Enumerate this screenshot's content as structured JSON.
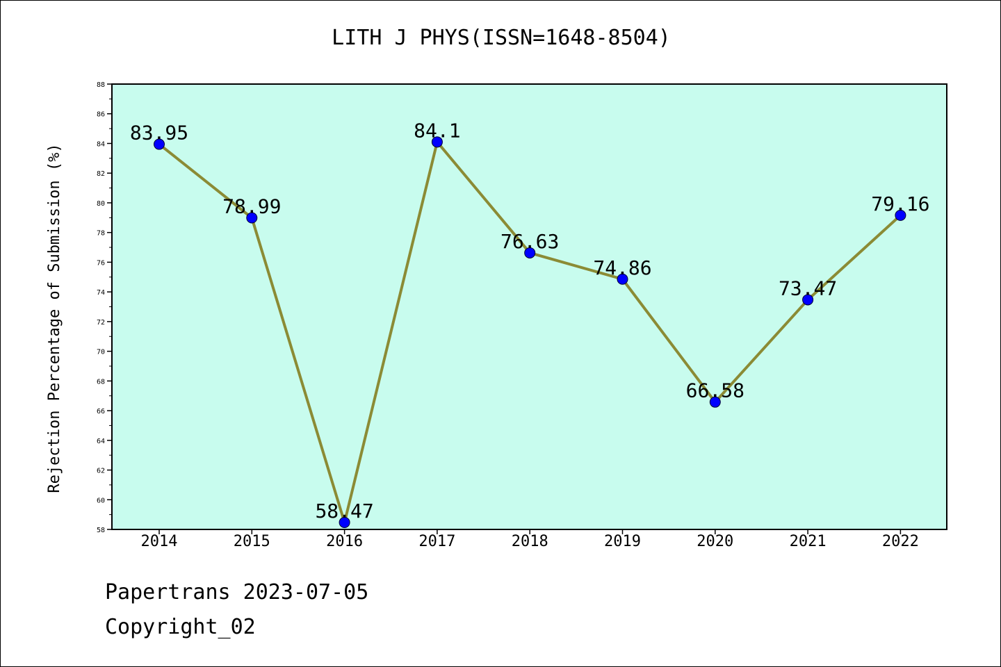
{
  "chart_data": {
    "type": "line",
    "title": "LITH J PHYS(ISSN=1648-8504)",
    "xlabel": "",
    "ylabel": "Rejection Percentage of Submission (%)",
    "categories": [
      "2014",
      "2015",
      "2016",
      "2017",
      "2018",
      "2019",
      "2020",
      "2021",
      "2022"
    ],
    "values": [
      83.95,
      78.99,
      58.47,
      84.1,
      76.63,
      74.86,
      66.58,
      73.47,
      79.16
    ],
    "data_labels": [
      "83.95",
      "78.99",
      "58.47",
      "84.1",
      "76.63",
      "74.86",
      "66.58",
      "73.47",
      "79.16"
    ],
    "ylim": [
      58,
      88
    ],
    "yticks": [
      "58",
      "60",
      "62",
      "64",
      "66",
      "68",
      "70",
      "72",
      "74",
      "76",
      "78",
      "80",
      "82",
      "84",
      "86",
      "88"
    ],
    "grid": false,
    "legend": "none",
    "colors": {
      "plot_background": "#c8fcee",
      "line": "#8b8b35",
      "marker": "#0000ff"
    }
  },
  "footer": {
    "line1": "Papertrans 2023-07-05",
    "line2": "Copyright_02"
  }
}
